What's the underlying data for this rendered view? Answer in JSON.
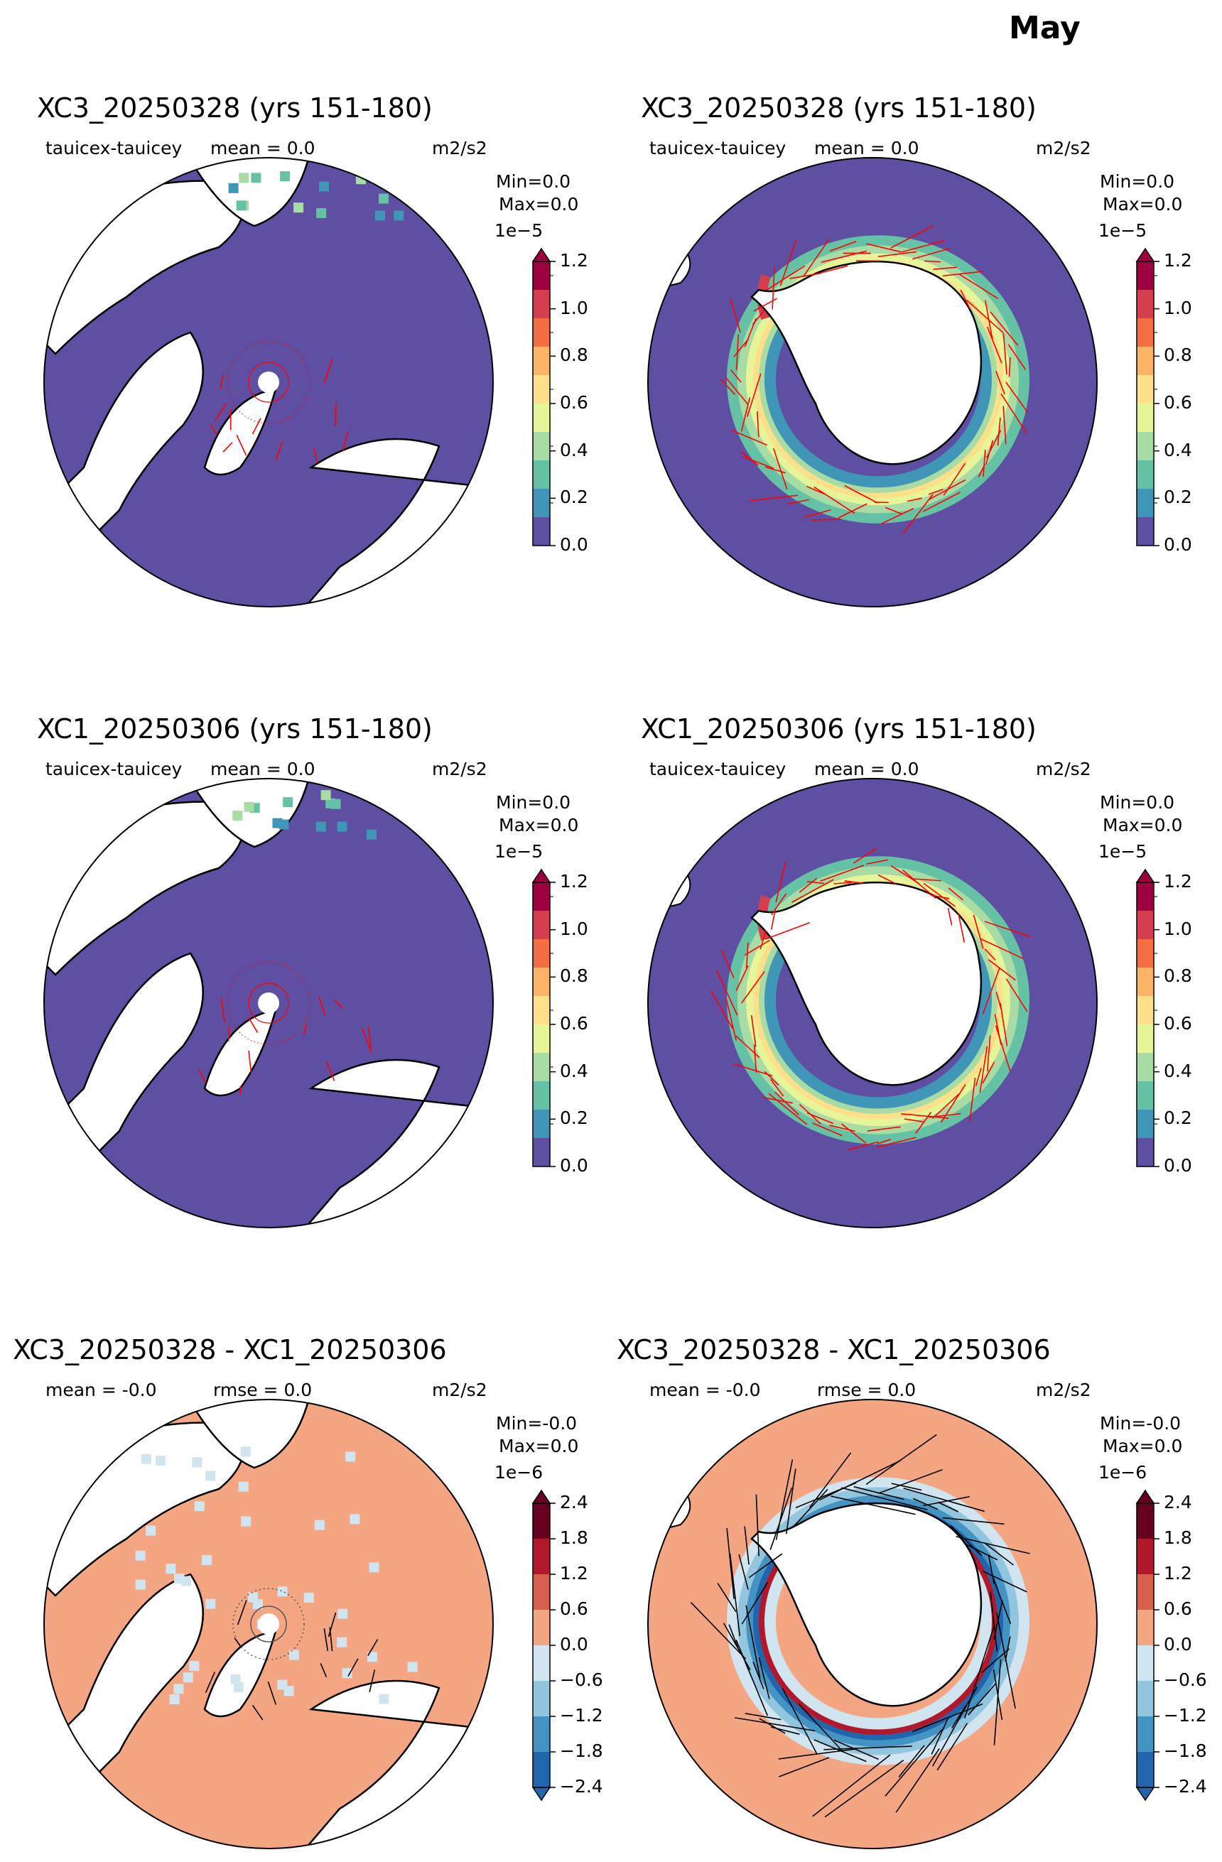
{
  "figure": {
    "title": "May"
  },
  "chart_data": [
    {
      "type": "heatmap",
      "hemisphere": "north",
      "title": "XC3_20250328 (yrs 151-180)",
      "variable": "tauicex-tauicey",
      "mean_label": "mean = 0.0",
      "units": "m2/s2",
      "min_label": "Min=0.0",
      "max_label": "Max=0.0",
      "exponent": "1e−5",
      "ticks": [
        "0.0",
        "0.2",
        "0.4",
        "0.6",
        "0.8",
        "1.0",
        "1.2"
      ],
      "colors": [
        "#5e4fa2",
        "#3f96b7",
        "#66c2a5",
        "#a9dca4",
        "#e6f598",
        "#fee08b",
        "#fdb366",
        "#f46d43",
        "#d53e4f",
        "#9e0142"
      ],
      "arrow_color": "#ff0000"
    },
    {
      "type": "heatmap",
      "hemisphere": "south",
      "title": "XC3_20250328 (yrs 151-180)",
      "variable": "tauicex-tauicey",
      "mean_label": "mean = 0.0",
      "units": "m2/s2",
      "min_label": "Min=0.0",
      "max_label": "Max=0.0",
      "exponent": "1e−5",
      "ticks": [
        "0.0",
        "0.2",
        "0.4",
        "0.6",
        "0.8",
        "1.0",
        "1.2"
      ],
      "colors": [
        "#5e4fa2",
        "#3f96b7",
        "#66c2a5",
        "#a9dca4",
        "#e6f598",
        "#fee08b",
        "#fdb366",
        "#f46d43",
        "#d53e4f",
        "#9e0142"
      ],
      "arrow_color": "#ff0000"
    },
    {
      "type": "heatmap",
      "hemisphere": "north",
      "title": "XC1_20250306 (yrs 151-180)",
      "variable": "tauicex-tauicey",
      "mean_label": "mean = 0.0",
      "units": "m2/s2",
      "min_label": "Min=0.0",
      "max_label": "Max=0.0",
      "exponent": "1e−5",
      "ticks": [
        "0.0",
        "0.2",
        "0.4",
        "0.6",
        "0.8",
        "1.0",
        "1.2"
      ],
      "colors": [
        "#5e4fa2",
        "#3f96b7",
        "#66c2a5",
        "#a9dca4",
        "#e6f598",
        "#fee08b",
        "#fdb366",
        "#f46d43",
        "#d53e4f",
        "#9e0142"
      ],
      "arrow_color": "#ff0000"
    },
    {
      "type": "heatmap",
      "hemisphere": "south",
      "title": "XC1_20250306 (yrs 151-180)",
      "variable": "tauicex-tauicey",
      "mean_label": "mean = 0.0",
      "units": "m2/s2",
      "min_label": "Min=0.0",
      "max_label": "Max=0.0",
      "exponent": "1e−5",
      "ticks": [
        "0.0",
        "0.2",
        "0.4",
        "0.6",
        "0.8",
        "1.0",
        "1.2"
      ],
      "colors": [
        "#5e4fa2",
        "#3f96b7",
        "#66c2a5",
        "#a9dca4",
        "#e6f598",
        "#fee08b",
        "#fdb366",
        "#f46d43",
        "#d53e4f",
        "#9e0142"
      ],
      "arrow_color": "#ff0000"
    },
    {
      "type": "heatmap",
      "hemisphere": "north",
      "title": "XC3_20250328 - XC1_20250306",
      "variable": "",
      "mean_label": "mean = -0.0",
      "rmse_label": "rmse = 0.0",
      "units": "m2/s2",
      "min_label": "Min=-0.0",
      "max_label": "Max=0.0",
      "exponent": "1e−6",
      "ticks": [
        "−2.4",
        "−1.8",
        "−1.2",
        "−0.6",
        "0.0",
        "0.6",
        "1.2",
        "1.8",
        "2.4"
      ],
      "colors": [
        "#2166ac",
        "#4393c3",
        "#92c5de",
        "#d1e5f0",
        "#f4a582",
        "#d6604d",
        "#b2182b",
        "#67001f"
      ],
      "arrow_color": "#000000"
    },
    {
      "type": "heatmap",
      "hemisphere": "south",
      "title": "XC3_20250328 - XC1_20250306",
      "variable": "",
      "mean_label": "mean = -0.0",
      "rmse_label": "rmse = 0.0",
      "units": "m2/s2",
      "min_label": "Min=-0.0",
      "max_label": "Max=0.0",
      "exponent": "1e−6",
      "ticks": [
        "−2.4",
        "−1.8",
        "−1.2",
        "−0.6",
        "0.0",
        "0.6",
        "1.2",
        "1.8",
        "2.4"
      ],
      "colors": [
        "#2166ac",
        "#4393c3",
        "#92c5de",
        "#d1e5f0",
        "#f4a582",
        "#d6604d",
        "#b2182b",
        "#67001f"
      ],
      "arrow_color": "#000000"
    }
  ]
}
